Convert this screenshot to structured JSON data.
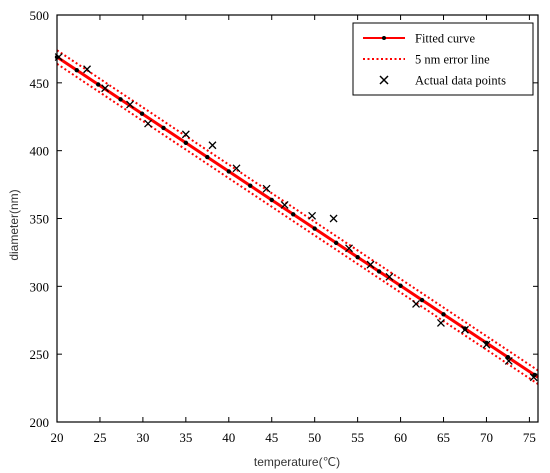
{
  "chart_data": {
    "type": "scatter",
    "xlabel": "temperature(℃)",
    "ylabel": "diameter(nm)",
    "xlim": [
      20,
      76
    ],
    "ylim": [
      200,
      500
    ],
    "xticks": [
      20,
      25,
      30,
      35,
      40,
      45,
      50,
      55,
      60,
      65,
      70,
      75
    ],
    "yticks": [
      200,
      250,
      300,
      350,
      400,
      450,
      500
    ],
    "grid": false,
    "legend_position": "top-right",
    "legend": [
      {
        "label": "Fitted curve",
        "style": "line-with-dot",
        "color": "#ff0000"
      },
      {
        "label": "5 nm error line",
        "style": "dotted",
        "color": "#ff0000"
      },
      {
        "label": "Actual data points",
        "style": "x-marker",
        "color": "#000000"
      }
    ],
    "fitted_curve": {
      "x": [
        20,
        76
      ],
      "y": [
        469,
        233
      ],
      "marker_x": [
        20,
        22.3,
        24.8,
        27.4,
        29.9,
        32.4,
        35,
        37.5,
        40,
        42.5,
        45,
        47.5,
        50,
        52.5,
        55,
        57.5,
        60,
        62.5,
        65,
        67.5,
        70,
        72.5,
        75.6
      ]
    },
    "error_offset_nm": 5,
    "actual_points": {
      "x": [
        20.2,
        23.5,
        25.6,
        28.5,
        30.6,
        35,
        38.1,
        40.9,
        44.4,
        46.5,
        49.7,
        52.2,
        54,
        56.5,
        58.7,
        61.8,
        64.7,
        67.5,
        70,
        72.6,
        75.5
      ],
      "y": [
        469,
        460,
        446,
        434,
        420,
        412,
        404,
        387,
        372,
        360,
        352,
        350,
        328,
        316,
        307,
        287,
        273,
        268,
        257,
        245,
        233
      ]
    }
  }
}
